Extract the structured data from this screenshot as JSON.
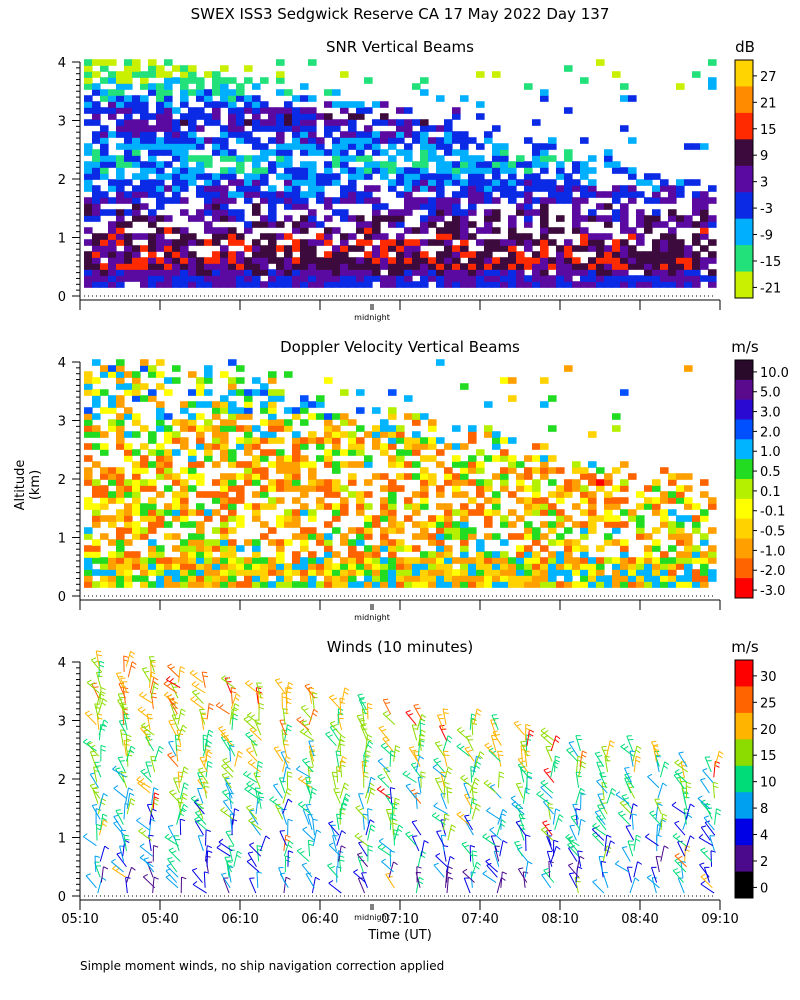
{
  "main_title": "SWEX ISS3 Sedgwick Reserve CA  17 May 2022 Day 137",
  "y_axis_label": "Altitude (km)",
  "x_axis_label": "Time (UT)",
  "footnote": "Simple moment winds, no ship navigation correction applied",
  "midnight_label": "midnight",
  "chart_data": [
    {
      "type": "heatmap",
      "title": "SNR Vertical Beams",
      "unit": "dB",
      "ylim": [
        0,
        4
      ],
      "y_ticks": [
        "0",
        "1",
        "2",
        "3",
        "4"
      ],
      "colorbar_ticks": [
        "27",
        "21",
        "15",
        "9",
        "3",
        "-3",
        "-9",
        "-15",
        "-21"
      ],
      "colorbar_colors": [
        "#ffd400",
        "#ff8c00",
        "#ff2a00",
        "#3d0a3d",
        "#5a0aa0",
        "#0a2ae6",
        "#00b0ff",
        "#22e07a",
        "#c8f000"
      ],
      "altitude_profile": [
        {
          "alt": 0.3,
          "value": 0
        },
        {
          "alt": 0.5,
          "value": 10
        },
        {
          "alt": 0.9,
          "value": 9
        },
        {
          "alt": 1.5,
          "value": 1
        },
        {
          "alt": 2.3,
          "value": -10
        },
        {
          "alt": 3.0,
          "value": 3
        },
        {
          "alt": 3.7,
          "value": -18
        }
      ]
    },
    {
      "type": "heatmap",
      "title": "Doppler Velocity Vertical Beams",
      "unit": "m/s",
      "ylim": [
        0,
        4
      ],
      "y_ticks": [
        "0",
        "1",
        "2",
        "3",
        "4"
      ],
      "colorbar_ticks": [
        "10.0",
        "5.0",
        "3.0",
        "2.0",
        "1.0",
        "0.5",
        "0.1",
        "-0.1",
        "-0.5",
        "-1.0",
        "-2.0",
        "-3.0"
      ],
      "colorbar_colors": [
        "#2a0a2a",
        "#5a0a8c",
        "#2a0ad2",
        "#0050ff",
        "#00b4ff",
        "#22dc22",
        "#b4f000",
        "#ffff00",
        "#ffd200",
        "#ffa000",
        "#ff6400",
        "#ff0000"
      ],
      "altitude_profile": [
        {
          "alt": 0.3,
          "value": -0.1
        },
        {
          "alt": 0.8,
          "value": -0.5
        },
        {
          "alt": 1.9,
          "value": -1.0
        },
        {
          "alt": 3.2,
          "value": 0.3
        }
      ]
    },
    {
      "type": "wind_barbs",
      "title": "Winds (10 minutes)",
      "unit": "m/s",
      "ylim": [
        0,
        4
      ],
      "y_ticks": [
        "0",
        "1",
        "2",
        "3",
        "4"
      ],
      "colorbar_ticks": [
        "30",
        "25",
        "20",
        "15",
        "10",
        "8",
        "4",
        "2",
        "0"
      ],
      "colorbar_colors": [
        "#ff0000",
        "#ff6400",
        "#ffb400",
        "#8cdc00",
        "#00dc78",
        "#00a0f0",
        "#0000e6",
        "#4b0a8c",
        "#000000"
      ],
      "x_ticks": [
        "05:10",
        "05:40",
        "06:10",
        "06:40",
        "07:10",
        "07:40",
        "08:10",
        "08:40",
        "09:10"
      ],
      "profile_times": [
        "05:17",
        "05:27",
        "05:37",
        "05:47",
        "05:57",
        "06:07",
        "06:17",
        "06:27",
        "06:37",
        "06:47",
        "06:57",
        "07:07",
        "07:17",
        "07:27",
        "07:37",
        "07:47",
        "07:57",
        "08:07",
        "08:17",
        "08:27",
        "08:37",
        "08:47",
        "08:57",
        "09:07"
      ]
    }
  ]
}
